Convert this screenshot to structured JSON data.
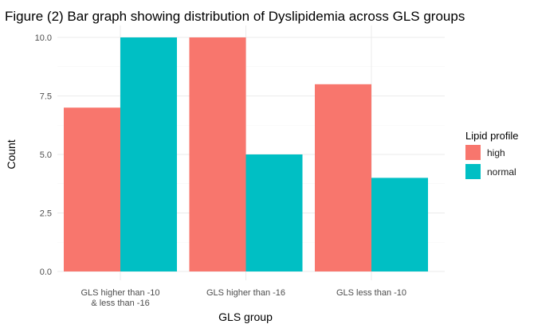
{
  "chart_data": {
    "type": "bar",
    "title": "Figure (2) Bar graph showing distribution of Dyslipidemia across GLS groups",
    "xlabel": "GLS group",
    "ylabel": "Count",
    "categories": [
      [
        "GLS higher than -10",
        "& less than -16"
      ],
      [
        "GLS higher than -16"
      ],
      [
        "GLS less than -10"
      ]
    ],
    "series": [
      {
        "name": "high",
        "values": [
          7,
          10,
          8
        ],
        "color": "#F8766D"
      },
      {
        "name": "normal",
        "values": [
          10,
          5,
          4
        ],
        "color": "#00BFC4"
      }
    ],
    "ylim": [
      0,
      10
    ],
    "yticks": [
      0,
      2.5,
      5,
      7.5,
      10
    ],
    "ytick_labels": [
      "0.0",
      "2.5",
      "5.0",
      "7.5",
      "10.0"
    ],
    "grid": true,
    "legend": {
      "title": "Lipid profile",
      "placement": "right"
    }
  }
}
